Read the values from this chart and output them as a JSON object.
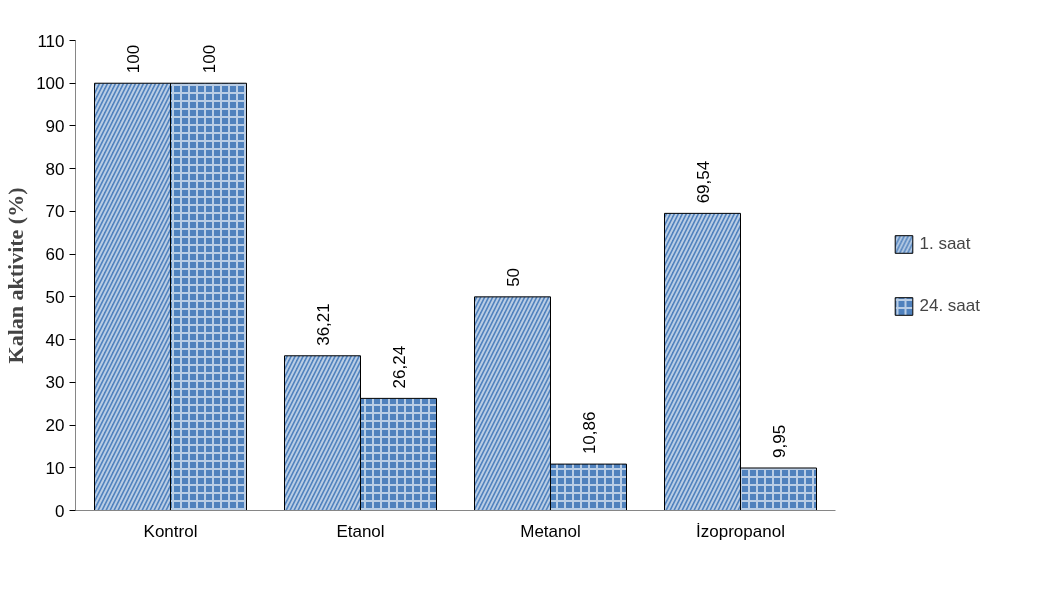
{
  "chart_data": {
    "type": "bar",
    "ylabel": "Kalan aktivite (%)",
    "categories": [
      "Kontrol",
      "Etanol",
      "Metanol",
      "İzopropanol"
    ],
    "series": [
      {
        "name": "1. saat",
        "color": "#4f81bd",
        "values": [
          100,
          36.21,
          50,
          69.54
        ],
        "value_labels": [
          "100",
          "36,21",
          "50",
          "69,54"
        ]
      },
      {
        "name": "24. saat",
        "color": "#4f81bd",
        "values": [
          100,
          26.24,
          10.86,
          9.95
        ],
        "value_labels": [
          "100",
          "26,24",
          "10,86",
          "9,95"
        ]
      }
    ],
    "ylim": [
      0,
      110
    ],
    "yticks": [
      0,
      10,
      20,
      30,
      40,
      50,
      60,
      70,
      80,
      90,
      100,
      110
    ],
    "grid": false,
    "legend": "right"
  }
}
